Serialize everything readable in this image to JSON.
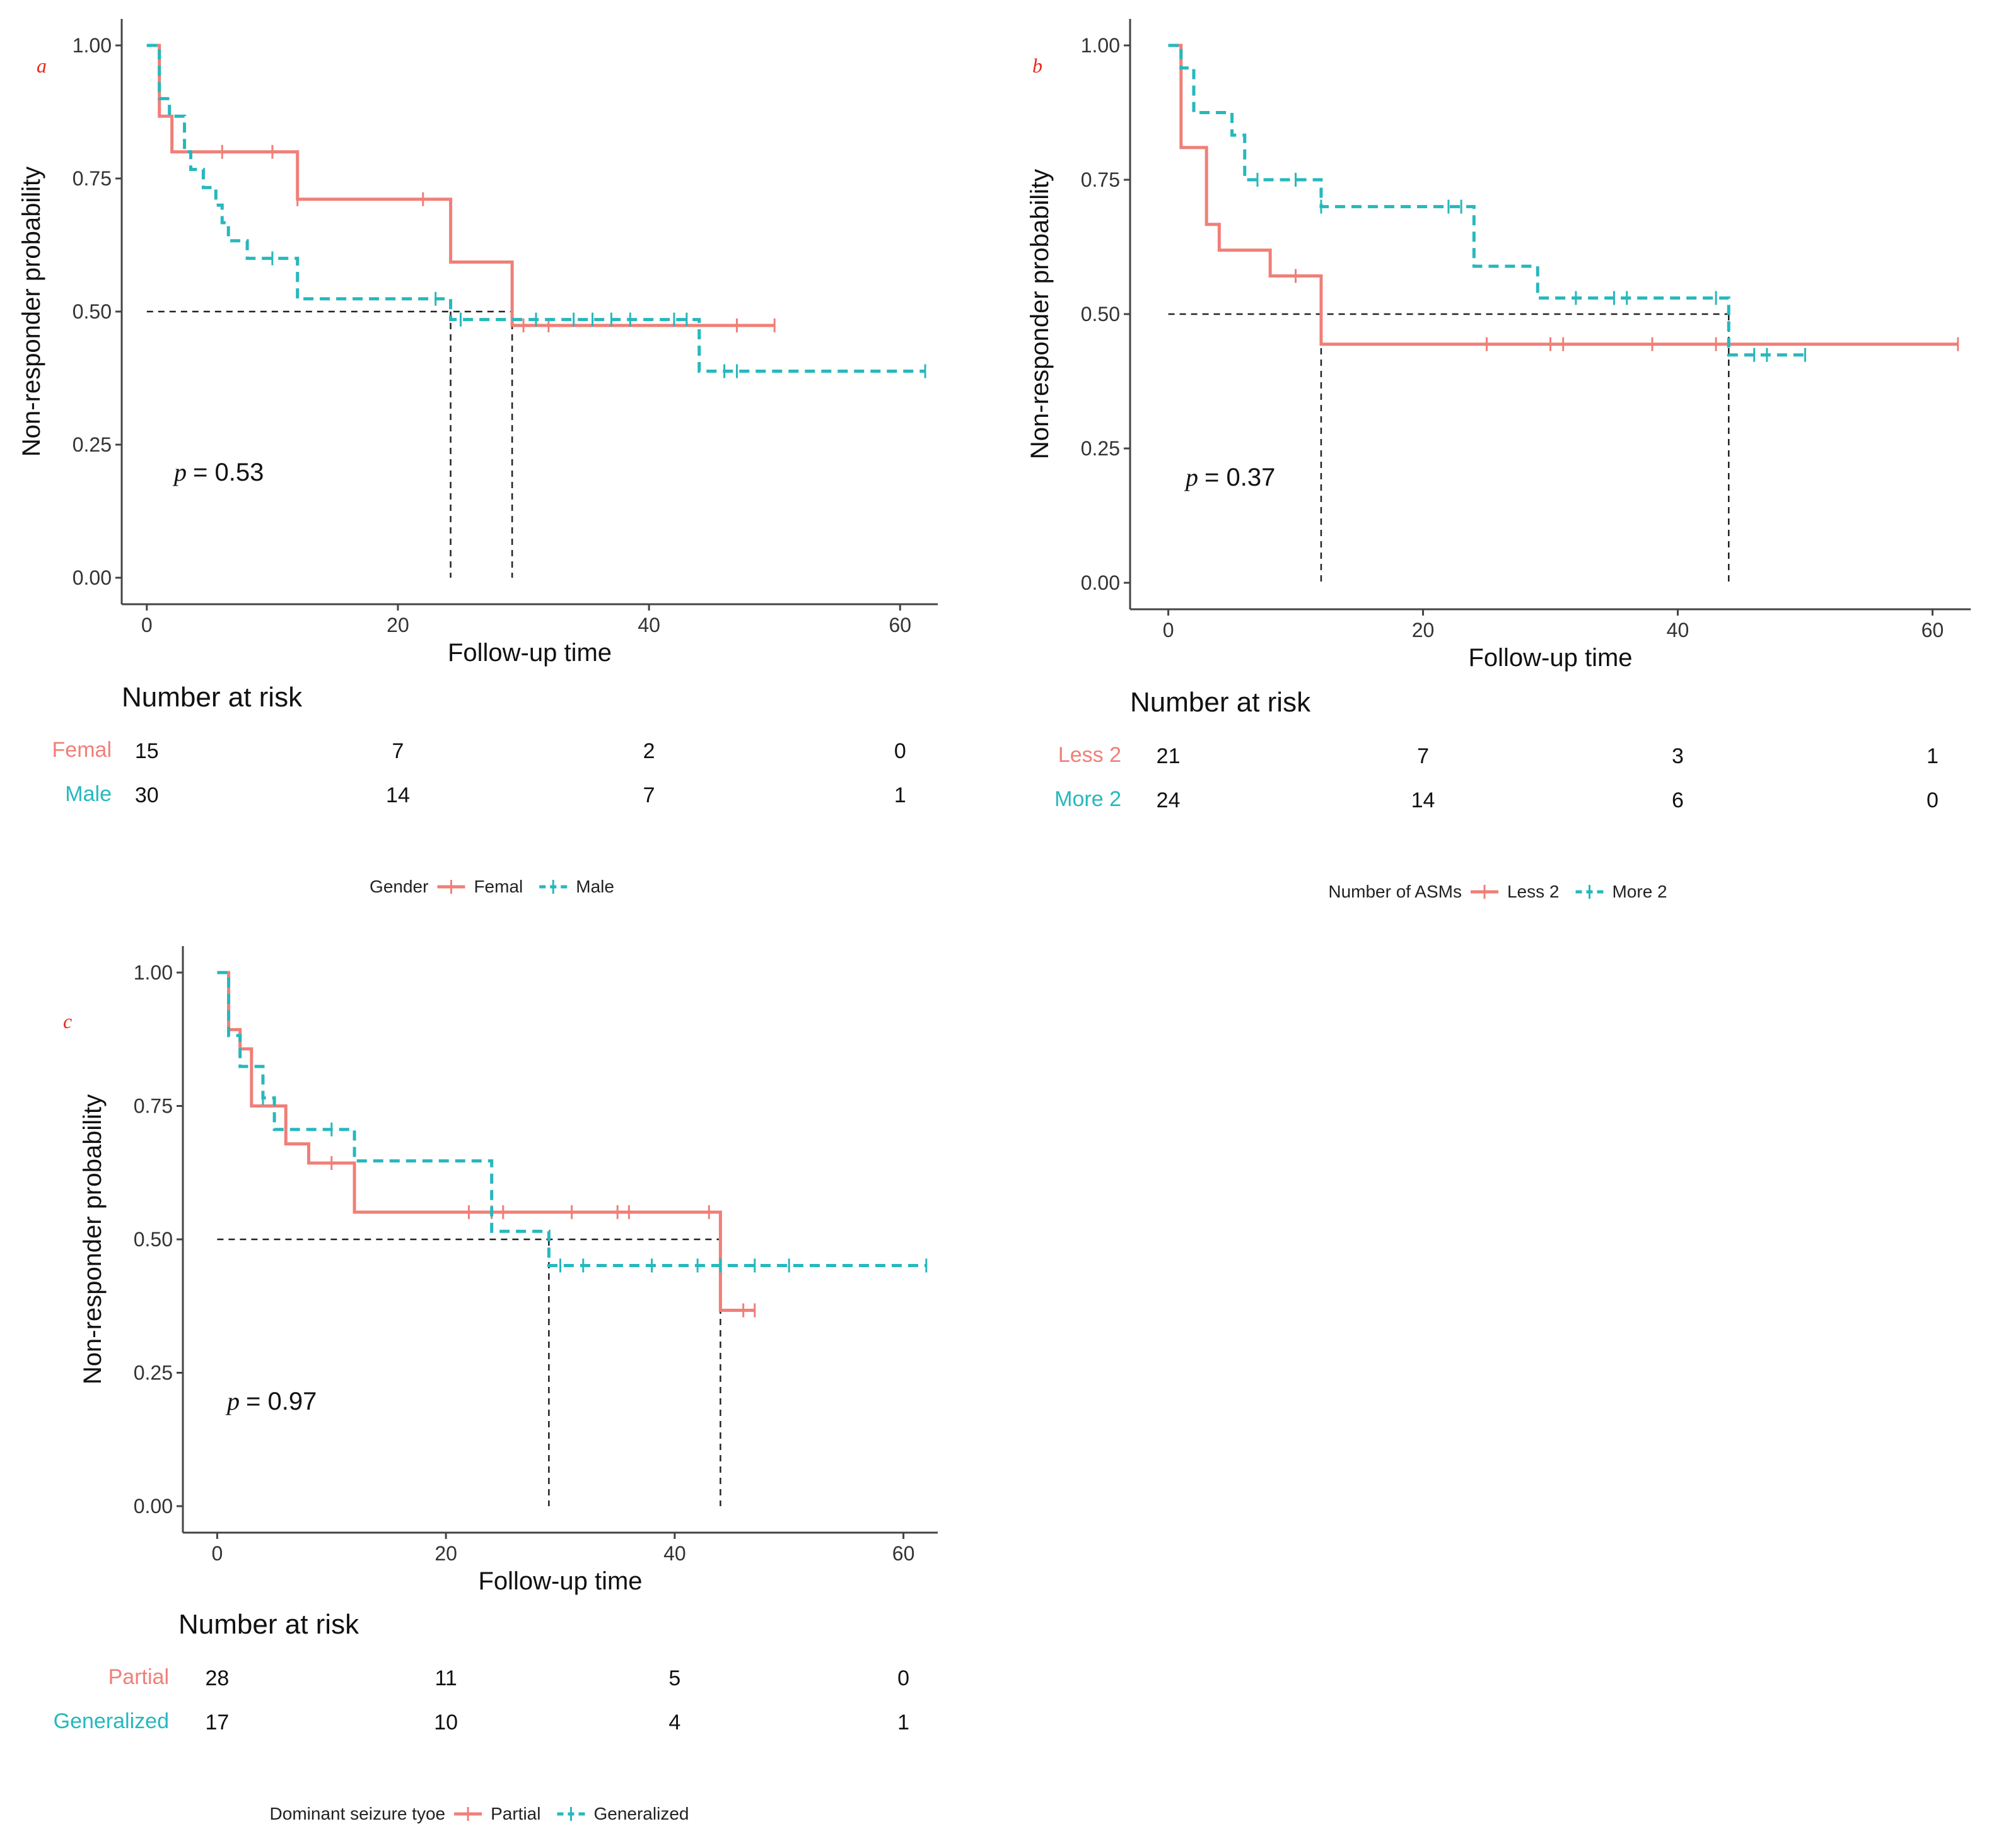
{
  "colors": {
    "group1": "#f07f78",
    "group2": "#26b8bd",
    "median": "#222222",
    "axis": "#444444",
    "panel_label": "#e8291c"
  },
  "chart_data": [
    {
      "type": "line",
      "panel_label": "a",
      "xlabel": "Follow-up time",
      "ylabel": "Non-responder probability",
      "xlim": [
        -2,
        63
      ],
      "ylim": [
        0,
        1.05
      ],
      "xticks": [
        0,
        20,
        40,
        60
      ],
      "yticks": [
        0,
        0.25,
        0.5,
        0.75,
        1.0
      ],
      "x_tick_labels": [
        "0",
        "20",
        "40",
        "60"
      ],
      "y_tick_labels": [
        "0.00",
        "0.25",
        "0.50",
        "0.75",
        "1.00"
      ],
      "p_value": "= 0.53",
      "median_times": [
        24.2,
        29.1
      ],
      "series": [
        {
          "name": "Femal",
          "steps": [
            [
              0,
              1.0
            ],
            [
              1,
              0.867
            ],
            [
              2,
              0.8
            ],
            [
              12,
              0.711
            ],
            [
              24.2,
              0.593
            ],
            [
              29.1,
              0.474
            ],
            [
              50,
              0.474
            ]
          ],
          "censor": [
            [
              6,
              0.8
            ],
            [
              10,
              0.8
            ],
            [
              12,
              0.711
            ],
            [
              22,
              0.711
            ],
            [
              30,
              0.474
            ],
            [
              32,
              0.474
            ],
            [
              47,
              0.474
            ],
            [
              50,
              0.474
            ]
          ]
        },
        {
          "name": "Male",
          "steps": [
            [
              0,
              1.0
            ],
            [
              1,
              0.9
            ],
            [
              1.8,
              0.867
            ],
            [
              3,
              0.8
            ],
            [
              3.5,
              0.767
            ],
            [
              4.5,
              0.733
            ],
            [
              5.5,
              0.7
            ],
            [
              6,
              0.667
            ],
            [
              6.5,
              0.633
            ],
            [
              8,
              0.6
            ],
            [
              12,
              0.524
            ],
            [
              24.2,
              0.485
            ],
            [
              44,
              0.388
            ],
            [
              62,
              0.388
            ]
          ],
          "censor": [
            [
              10,
              0.6
            ],
            [
              23,
              0.524
            ],
            [
              25,
              0.485
            ],
            [
              31,
              0.485
            ],
            [
              34,
              0.485
            ],
            [
              35.5,
              0.485
            ],
            [
              37,
              0.485
            ],
            [
              38.5,
              0.485
            ],
            [
              42,
              0.485
            ],
            [
              43,
              0.485
            ],
            [
              46,
              0.388
            ],
            [
              47,
              0.388
            ],
            [
              62,
              0.388
            ]
          ]
        }
      ],
      "risk_table": {
        "title": "Number at risk",
        "times": [
          0,
          20,
          40,
          60
        ],
        "groups": [
          {
            "name": "Femal",
            "counts": [
              "15",
              "7",
              "2",
              "0"
            ]
          },
          {
            "name": "Male",
            "counts": [
              "30",
              "14",
              "7",
              "1"
            ]
          }
        ]
      },
      "legend": {
        "title": "Gender",
        "labels": [
          "Femal",
          "Male"
        ],
        "position": "bottom"
      }
    },
    {
      "type": "line",
      "panel_label": "b",
      "xlabel": "Follow-up time",
      "ylabel": "Non-responder probability",
      "xlim": [
        -3,
        63
      ],
      "ylim": [
        0,
        1.05
      ],
      "xticks": [
        0,
        20,
        40,
        60
      ],
      "yticks": [
        0,
        0.25,
        0.5,
        0.75,
        1.0
      ],
      "x_tick_labels": [
        "0",
        "20",
        "40",
        "60"
      ],
      "y_tick_labels": [
        "0.00",
        "0.25",
        "0.50",
        "0.75",
        "1.00"
      ],
      "p_value": "= 0.37",
      "median_times": [
        12,
        44
      ],
      "series": [
        {
          "name": "Less 2",
          "steps": [
            [
              0,
              1.0
            ],
            [
              1,
              0.81
            ],
            [
              3,
              0.667
            ],
            [
              4,
              0.619
            ],
            [
              8,
              0.571
            ],
            [
              12,
              0.444
            ],
            [
              62,
              0.444
            ]
          ],
          "censor": [
            [
              10,
              0.571
            ],
            [
              25,
              0.444
            ],
            [
              30,
              0.444
            ],
            [
              31,
              0.444
            ],
            [
              38,
              0.444
            ],
            [
              43,
              0.444
            ],
            [
              62,
              0.444
            ]
          ]
        },
        {
          "name": "More 2",
          "steps": [
            [
              0,
              1.0
            ],
            [
              1,
              0.958
            ],
            [
              2,
              0.875
            ],
            [
              5,
              0.833
            ],
            [
              6,
              0.75
            ],
            [
              12,
              0.7
            ],
            [
              24,
              0.589
            ],
            [
              29,
              0.53
            ],
            [
              44,
              0.424
            ],
            [
              50,
              0.424
            ]
          ],
          "censor": [
            [
              7,
              0.75
            ],
            [
              10,
              0.75
            ],
            [
              12,
              0.7
            ],
            [
              22,
              0.7
            ],
            [
              23,
              0.7
            ],
            [
              32,
              0.53
            ],
            [
              35,
              0.53
            ],
            [
              36,
              0.53
            ],
            [
              43,
              0.53
            ],
            [
              46,
              0.424
            ],
            [
              47,
              0.424
            ],
            [
              50,
              0.424
            ]
          ]
        }
      ],
      "risk_table": {
        "title": "Number at risk",
        "times": [
          0,
          20,
          40,
          60
        ],
        "groups": [
          {
            "name": "Less 2",
            "counts": [
              "21",
              "7",
              "3",
              "1"
            ]
          },
          {
            "name": "More 2",
            "counts": [
              "24",
              "14",
              "6",
              "0"
            ]
          }
        ]
      },
      "legend": {
        "title": "Number of ASMs",
        "labels": [
          "Less 2",
          "More 2"
        ],
        "position": "bottom"
      }
    },
    {
      "type": "line",
      "panel_label": "c",
      "xlabel": "Follow-up time",
      "ylabel": "Non-responder probability",
      "xlim": [
        -3,
        63
      ],
      "ylim": [
        0,
        1.05
      ],
      "xticks": [
        0,
        20,
        40,
        60
      ],
      "yticks": [
        0,
        0.25,
        0.5,
        0.75,
        1.0
      ],
      "x_tick_labels": [
        "0",
        "20",
        "40",
        "60"
      ],
      "y_tick_labels": [
        "0.00",
        "0.25",
        "0.50",
        "0.75",
        "1.00"
      ],
      "p_value": "= 0.97",
      "median_times": [
        29,
        44
      ],
      "series": [
        {
          "name": "Partial",
          "steps": [
            [
              0,
              1.0
            ],
            [
              1,
              0.893
            ],
            [
              2,
              0.857
            ],
            [
              3,
              0.75
            ],
            [
              6,
              0.679
            ],
            [
              8,
              0.643
            ],
            [
              12,
              0.551
            ],
            [
              44,
              0.367
            ],
            [
              47,
              0.367
            ]
          ],
          "censor": [
            [
              10,
              0.643
            ],
            [
              22,
              0.551
            ],
            [
              24,
              0.551
            ],
            [
              25,
              0.551
            ],
            [
              31,
              0.551
            ],
            [
              35,
              0.551
            ],
            [
              36,
              0.551
            ],
            [
              43,
              0.551
            ],
            [
              46,
              0.367
            ],
            [
              47,
              0.367
            ]
          ]
        },
        {
          "name": "Generalized",
          "steps": [
            [
              0,
              1.0
            ],
            [
              1,
              0.882
            ],
            [
              2,
              0.824
            ],
            [
              4,
              0.765
            ],
            [
              5,
              0.706
            ],
            [
              12,
              0.647
            ],
            [
              24,
              0.515
            ],
            [
              29,
              0.451
            ],
            [
              62,
              0.451
            ]
          ],
          "censor": [
            [
              4,
              0.765
            ],
            [
              10,
              0.706
            ],
            [
              30,
              0.451
            ],
            [
              32,
              0.451
            ],
            [
              38,
              0.451
            ],
            [
              42,
              0.451
            ],
            [
              44,
              0.451
            ],
            [
              47,
              0.451
            ],
            [
              50,
              0.451
            ],
            [
              62,
              0.451
            ]
          ]
        }
      ],
      "risk_table": {
        "title": "Number at risk",
        "times": [
          0,
          20,
          40,
          60
        ],
        "groups": [
          {
            "name": "Partial",
            "counts": [
              "28",
              "11",
              "5",
              "0"
            ]
          },
          {
            "name": "Generalized",
            "counts": [
              "17",
              "10",
              "4",
              "1"
            ]
          }
        ]
      },
      "legend": {
        "title": "Dominant seizure tyoe",
        "labels": [
          "Partial",
          "Generalized"
        ],
        "position": "bottom"
      }
    }
  ]
}
